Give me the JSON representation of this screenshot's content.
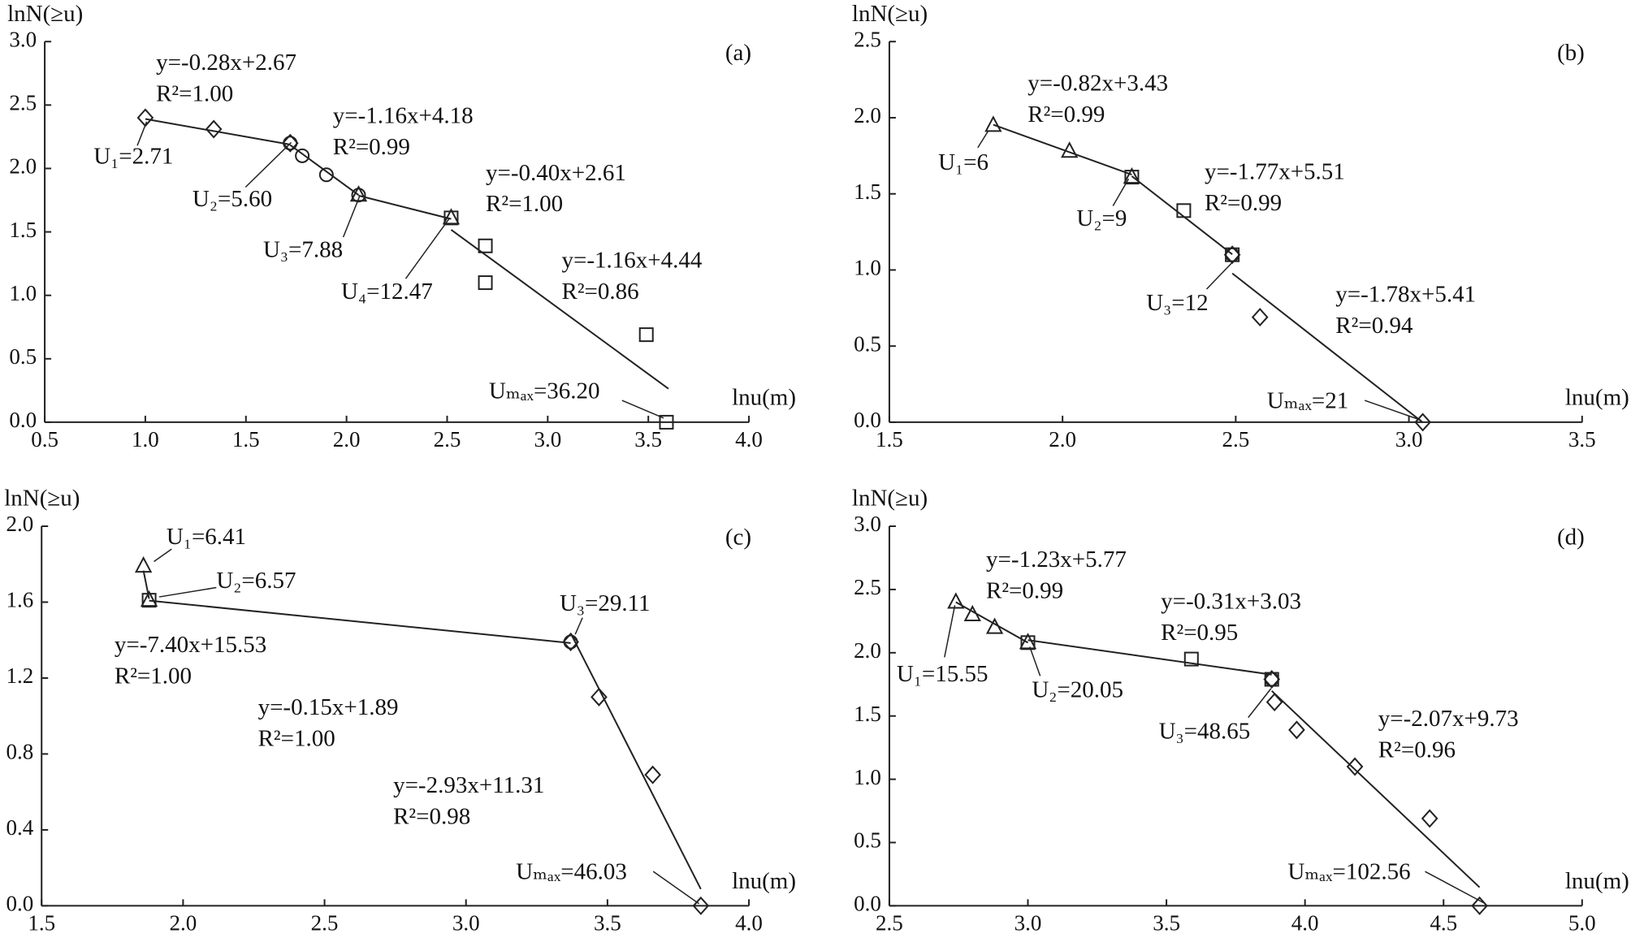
{
  "chart_data": [
    {
      "type": "scatter",
      "panel": "(a)",
      "y_label": "lnN(≥u)",
      "x_label": "lnu(m)",
      "xlim": [
        0.5,
        4.0
      ],
      "ylim": [
        0.0,
        3.0
      ],
      "xticks": [
        0.5,
        {
          "value": 1,
          "label": "1.0"
        },
        1.5,
        {
          "value": 2,
          "label": "2.0"
        },
        2.5,
        {
          "value": 3,
          "label": "3.0"
        },
        3.5,
        {
          "value": 4,
          "label": "4.0"
        }
      ],
      "yticks": [
        {
          "value": 0,
          "label": "0.0"
        },
        0.5,
        {
          "value": 1,
          "label": "1.0"
        },
        1.5,
        {
          "value": 2,
          "label": "2.0"
        },
        2.5,
        {
          "value": 3,
          "label": "3.0"
        }
      ],
      "series": [
        {
          "marker": "diamond",
          "color": "#222222",
          "x": [
            1.0,
            1.34,
            1.72
          ],
          "values": [
            2.4,
            2.31,
            2.2
          ]
        },
        {
          "marker": "circle",
          "color": "#222222",
          "x": [
            1.72,
            1.78,
            1.9,
            2.06
          ],
          "values": [
            2.2,
            2.1,
            1.95,
            1.79
          ]
        },
        {
          "marker": "triangle",
          "color": "#222222",
          "x": [
            2.06,
            2.52
          ],
          "values": [
            1.79,
            1.61
          ]
        },
        {
          "marker": "square",
          "color": "#222222",
          "x": [
            2.52,
            2.69,
            2.69,
            3.49,
            3.59
          ],
          "values": [
            1.61,
            1.39,
            1.1,
            0.69,
            0.0
          ]
        }
      ],
      "fits": [
        {
          "equation": "y=-0.28x+2.67",
          "r_squared": "R²=1.00",
          "slope": -0.28,
          "intercept": 2.67,
          "x_range": [
            1.0,
            1.72
          ]
        },
        {
          "equation": "y=-1.16x+4.18",
          "r_squared": "R²=0.99",
          "slope": -1.16,
          "intercept": 4.18,
          "x_range": [
            1.72,
            2.06
          ]
        },
        {
          "equation": "y=-0.40x+2.61",
          "r_squared": "R²=1.00",
          "slope": -0.4,
          "intercept": 2.61,
          "x_range": [
            2.06,
            2.52
          ]
        },
        {
          "equation": "y=-1.16x+4.44",
          "r_squared": "R²=0.86",
          "slope": -1.16,
          "intercept": 4.44,
          "x_range": [
            2.52,
            3.6
          ]
        }
      ],
      "annotations": [
        "U₁=2.71",
        "U₂=5.60",
        "U₃=7.88",
        "U₄=12.47",
        "Uₘₐₓ=36.20"
      ]
    },
    {
      "type": "scatter",
      "panel": "(b)",
      "y_label": "lnN(≥u)",
      "x_label": "lnu(m)",
      "xlim": [
        1.5,
        3.5
      ],
      "ylim": [
        0.0,
        2.5
      ],
      "xticks": [
        1.5,
        {
          "value": 2,
          "label": "2.0"
        },
        2.5,
        {
          "value": 3,
          "label": "3.0"
        },
        3.5
      ],
      "yticks": [
        {
          "value": 0,
          "label": "0.0"
        },
        0.5,
        {
          "value": 1,
          "label": "1.0"
        },
        1.5,
        {
          "value": 2,
          "label": "2.0"
        },
        2.5
      ],
      "series": [
        {
          "marker": "triangle",
          "color": "#222222",
          "x": [
            1.8,
            2.02,
            2.2
          ],
          "values": [
            1.95,
            1.78,
            1.61
          ]
        },
        {
          "marker": "square",
          "color": "#222222",
          "x": [
            2.2,
            2.35,
            2.49
          ],
          "values": [
            1.61,
            1.39,
            1.1
          ]
        },
        {
          "marker": "circle",
          "color": "#222222",
          "x": [
            2.49
          ],
          "values": [
            1.1
          ]
        },
        {
          "marker": "diamond",
          "color": "#222222",
          "x": [
            2.49,
            2.57,
            3.04
          ],
          "values": [
            1.1,
            0.69,
            0.0
          ]
        }
      ],
      "fits": [
        {
          "equation": "y=-0.82x+3.43",
          "r_squared": "R²=0.99",
          "slope": -0.82,
          "intercept": 3.43,
          "x_range": [
            1.8,
            2.2
          ]
        },
        {
          "equation": "y=-1.77x+5.51",
          "r_squared": "R²=0.99",
          "slope": -1.77,
          "intercept": 5.51,
          "x_range": [
            2.2,
            2.49
          ]
        },
        {
          "equation": "y=-1.78x+5.41",
          "r_squared": "R²=0.94",
          "slope": -1.78,
          "intercept": 5.41,
          "x_range": [
            2.49,
            3.04
          ]
        }
      ],
      "annotations": [
        "U₁=6",
        "U₂=9",
        "U₃=12",
        "Uₘₐₓ=21"
      ]
    },
    {
      "type": "scatter",
      "panel": "(c)",
      "y_label": "lnN(≥u)",
      "x_label": "lnu(m)",
      "xlim": [
        1.5,
        4.0
      ],
      "ylim": [
        0.0,
        2.0
      ],
      "xticks": [
        1.5,
        {
          "value": 2,
          "label": "2.0"
        },
        2.5,
        {
          "value": 3,
          "label": "3.0"
        },
        3.5,
        {
          "value": 4,
          "label": "4.0"
        }
      ],
      "yticks": [
        {
          "value": 0,
          "label": "0.0"
        },
        0.4,
        0.8,
        1.2,
        1.6,
        {
          "value": 2,
          "label": "2.0"
        }
      ],
      "series": [
        {
          "marker": "triangle",
          "color": "#222222",
          "x": [
            1.86,
            1.88
          ],
          "values": [
            1.79,
            1.61
          ]
        },
        {
          "marker": "square",
          "color": "#222222",
          "x": [
            1.88
          ],
          "values": [
            1.61
          ]
        },
        {
          "marker": "circle",
          "color": "#222222",
          "x": [
            3.37
          ],
          "values": [
            1.39
          ]
        },
        {
          "marker": "diamond",
          "color": "#222222",
          "x": [
            3.37,
            3.47,
            3.66,
            3.83
          ],
          "values": [
            1.39,
            1.1,
            0.69,
            0.0
          ]
        }
      ],
      "fits": [
        {
          "equation": "y=-7.40x+15.53",
          "r_squared": "R²=1.00",
          "slope": -7.4,
          "intercept": 15.53,
          "x_range": [
            1.86,
            1.88
          ]
        },
        {
          "equation": "y=-0.15x+1.89",
          "r_squared": "R²=1.00",
          "slope": -0.15,
          "intercept": 1.89,
          "x_range": [
            1.88,
            3.37
          ]
        },
        {
          "equation": "y=-2.93x+11.31",
          "r_squared": "R²=0.98",
          "slope": -2.93,
          "intercept": 11.31,
          "x_range": [
            3.37,
            3.83
          ]
        }
      ],
      "annotations": [
        "U₁=6.41",
        "U₂=6.57",
        "U₃=29.11",
        "Uₘₐₓ=46.03"
      ]
    },
    {
      "type": "scatter",
      "panel": "(d)",
      "y_label": "lnN(≥u)",
      "x_label": "lnu(m)",
      "xlim": [
        2.5,
        5.0
      ],
      "ylim": [
        0.0,
        3.0
      ],
      "xticks": [
        2.5,
        {
          "value": 3,
          "label": "3.0"
        },
        3.5,
        {
          "value": 4,
          "label": "4.0"
        },
        4.5,
        {
          "value": 5,
          "label": "5.0"
        }
      ],
      "yticks": [
        {
          "value": 0,
          "label": "0.0"
        },
        0.5,
        {
          "value": 1,
          "label": "1.0"
        },
        1.5,
        {
          "value": 2,
          "label": "2.0"
        },
        2.5,
        {
          "value": 3,
          "label": "3.0"
        }
      ],
      "series": [
        {
          "marker": "triangle",
          "color": "#222222",
          "x": [
            2.74,
            2.8,
            2.88,
            3.0
          ],
          "values": [
            2.4,
            2.3,
            2.2,
            2.08
          ]
        },
        {
          "marker": "square",
          "color": "#222222",
          "x": [
            3.0,
            3.59,
            3.88
          ],
          "values": [
            2.08,
            1.95,
            1.79
          ]
        },
        {
          "marker": "circle",
          "color": "#222222",
          "x": [
            3.88
          ],
          "values": [
            1.79
          ]
        },
        {
          "marker": "diamond",
          "color": "#222222",
          "x": [
            3.88,
            3.89,
            3.97,
            4.18,
            4.45,
            4.63
          ],
          "values": [
            1.79,
            1.61,
            1.39,
            1.1,
            0.69,
            0.0
          ]
        }
      ],
      "fits": [
        {
          "equation": "y=-1.23x+5.77",
          "r_squared": "R²=0.99",
          "slope": -1.23,
          "intercept": 5.77,
          "x_range": [
            2.74,
            3.0
          ]
        },
        {
          "equation": "y=-0.31x+3.03",
          "r_squared": "R²=0.95",
          "slope": -0.31,
          "intercept": 3.03,
          "x_range": [
            3.0,
            3.88
          ]
        },
        {
          "equation": "y=-2.07x+9.73",
          "r_squared": "R²=0.96",
          "slope": -2.07,
          "intercept": 9.73,
          "x_range": [
            3.88,
            4.63
          ]
        }
      ],
      "annotations": [
        "U₁=15.55",
        "U₂=20.05",
        "U₃=48.65",
        "Uₘₐₓ=102.56"
      ]
    }
  ]
}
